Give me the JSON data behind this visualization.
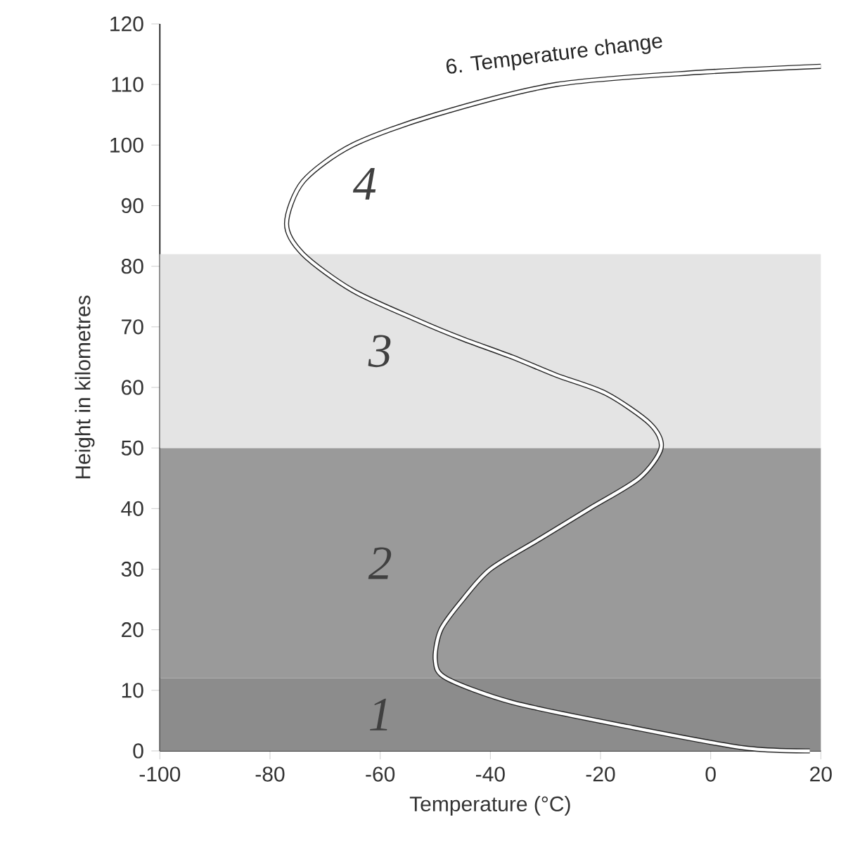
{
  "chart_data": {
    "type": "line",
    "xlabel": "Temperature (°C)",
    "ylabel": "Height in kilometres",
    "xlim": [
      -100,
      20
    ],
    "xticks": [
      -100,
      -80,
      -60,
      -40,
      -20,
      0,
      20
    ],
    "ylim": [
      0,
      120
    ],
    "yticks": [
      0,
      10,
      20,
      30,
      40,
      50,
      60,
      70,
      80,
      90,
      100,
      110,
      120
    ],
    "series": [
      {
        "name": "6. Temperature change",
        "color": "#ffffff",
        "x": [
          18,
          6,
          -15,
          -36,
          -48,
          -50,
          -49,
          -45,
          -40,
          -31,
          -22,
          -13,
          -9,
          -11,
          -19,
          -28,
          -36,
          -45,
          -53,
          -65,
          -74,
          -77,
          -74,
          -65,
          -50,
          -28,
          -2,
          20
        ],
        "values": [
          0,
          0.5,
          4,
          8,
          12,
          15,
          20,
          25,
          30,
          35,
          40,
          45,
          50,
          54,
          59,
          62,
          65,
          68,
          71,
          76,
          82,
          87,
          94,
          100,
          105,
          110,
          112,
          113
        ]
      }
    ],
    "bands": [
      {
        "axis": "y",
        "from": 0,
        "to": 12,
        "color": "#8c8c8c",
        "label": "1"
      },
      {
        "axis": "y",
        "from": 12,
        "to": 50,
        "color": "#9a9a9a",
        "label": "2"
      },
      {
        "axis": "y",
        "from": 50,
        "to": 82,
        "color": "#e4e4e4",
        "label": "3"
      }
    ],
    "annotations": [
      "4"
    ],
    "grid": false,
    "legend": false,
    "marker": "none",
    "line_style": "solid"
  }
}
